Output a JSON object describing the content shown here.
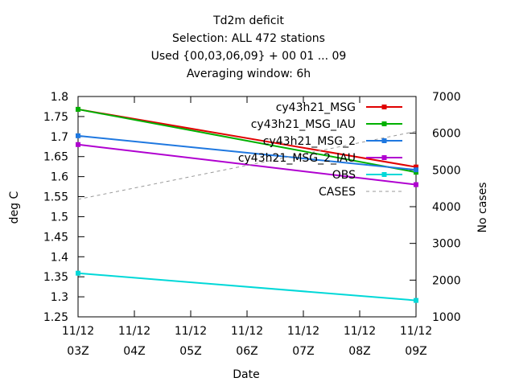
{
  "chart_data": {
    "type": "line",
    "title_lines": [
      "Td2m deficit",
      "Selection: ALL    472 stations",
      "Used {00,03,06,09} + 00 01 ... 09",
      "Averaging window:  6h"
    ],
    "xlabel": "Date",
    "ylabel": "deg C",
    "y2label": "No cases",
    "x_ticks": [
      {
        "date": "11/12",
        "hour": "03Z"
      },
      {
        "date": "11/12",
        "hour": "04Z"
      },
      {
        "date": "11/12",
        "hour": "05Z"
      },
      {
        "date": "11/12",
        "hour": "06Z"
      },
      {
        "date": "11/12",
        "hour": "07Z"
      },
      {
        "date": "11/12",
        "hour": "08Z"
      },
      {
        "date": "11/12",
        "hour": "09Z"
      }
    ],
    "x_range": [
      "11/12 03Z",
      "11/12 09Z"
    ],
    "ylim": [
      1.25,
      1.8
    ],
    "y_ticks": [
      "1.25",
      "1.3",
      "1.35",
      "1.4",
      "1.45",
      "1.5",
      "1.55",
      "1.6",
      "1.65",
      "1.7",
      "1.75",
      "1.8"
    ],
    "y2lim": [
      1000,
      7000
    ],
    "y2_ticks": [
      "1000",
      "2000",
      "3000",
      "4000",
      "5000",
      "6000",
      "7000"
    ],
    "legend_position": "top-right",
    "grid": false,
    "series": [
      {
        "name": "cy43h21_MSG",
        "color": "#e00000",
        "x": [
          "11/12 03Z",
          "11/12 09Z"
        ],
        "values": [
          1.768,
          1.624
        ],
        "axis": "left",
        "style": "solid"
      },
      {
        "name": "cy43h21_MSG_IAU",
        "color": "#00b000",
        "x": [
          "11/12 03Z",
          "11/12 09Z"
        ],
        "values": [
          1.768,
          1.611
        ],
        "axis": "left",
        "style": "solid"
      },
      {
        "name": "cy43h21_MSG_2",
        "color": "#1f78e0",
        "x": [
          "11/12 03Z",
          "11/12 09Z"
        ],
        "values": [
          1.702,
          1.617
        ],
        "axis": "left",
        "style": "solid"
      },
      {
        "name": "cy43h21_MSG_2_IAU",
        "color": "#b000d0",
        "x": [
          "11/12 03Z",
          "11/12 09Z"
        ],
        "values": [
          1.68,
          1.58
        ],
        "axis": "left",
        "style": "solid"
      },
      {
        "name": "OBS",
        "color": "#00d8d8",
        "x": [
          "11/12 03Z",
          "11/12 09Z"
        ],
        "values": [
          1.359,
          1.291
        ],
        "axis": "left",
        "style": "solid"
      },
      {
        "name": "CASES",
        "color": "#999999",
        "x": [
          "11/12 03Z",
          "11/12 09Z"
        ],
        "values": [
          4200,
          6050
        ],
        "axis": "right",
        "style": "dashed"
      }
    ]
  }
}
